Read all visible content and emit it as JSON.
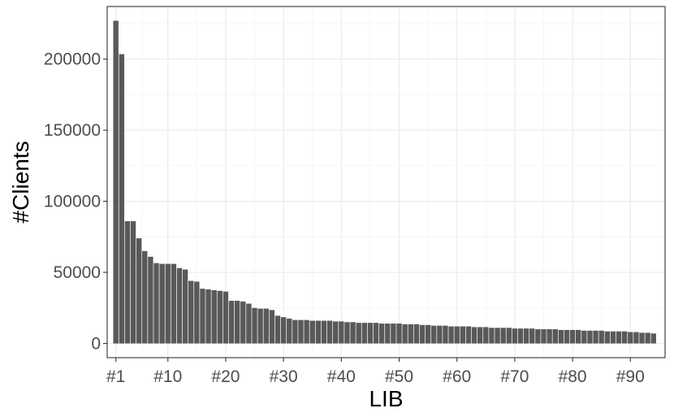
{
  "chart_data": {
    "type": "bar",
    "title": "",
    "xlabel": "LIB",
    "ylabel": "#Clients",
    "ylim": [
      -10000,
      237000
    ],
    "xlim": [
      -0.5,
      96.0
    ],
    "yticks": [
      0,
      50000,
      100000,
      150000,
      200000
    ],
    "ytick_labels": [
      "0",
      "50000",
      "100000",
      "150000",
      "200000"
    ],
    "xticks": [
      1,
      10,
      20,
      30,
      40,
      50,
      60,
      70,
      80,
      90
    ],
    "xtick_labels": [
      "#1",
      "#10",
      "#20",
      "#30",
      "#40",
      "#50",
      "#60",
      "#70",
      "#80",
      "#90"
    ],
    "grid": true,
    "legend": "none",
    "bar_color": "#595959",
    "panel_border_color": "#333333",
    "grid_major_color": "#ebebeb",
    "grid_minor_color": "#f4f4f4",
    "categories": [
      1,
      2,
      3,
      4,
      5,
      6,
      7,
      8,
      9,
      10,
      11,
      12,
      13,
      14,
      15,
      16,
      17,
      18,
      19,
      20,
      21,
      22,
      23,
      24,
      25,
      26,
      27,
      28,
      29,
      30,
      31,
      32,
      33,
      34,
      35,
      36,
      37,
      38,
      39,
      40,
      41,
      42,
      43,
      44,
      45,
      46,
      47,
      48,
      49,
      50,
      51,
      52,
      53,
      54,
      55,
      56,
      57,
      58,
      59,
      60,
      61,
      62,
      63,
      64,
      65,
      66,
      67,
      68,
      69,
      70,
      71,
      72,
      73,
      74,
      75,
      76,
      77,
      78,
      79,
      80,
      81,
      82,
      83,
      84,
      85,
      86,
      87,
      88,
      89,
      90,
      91,
      92,
      93,
      94
    ],
    "values": [
      227000,
      203500,
      86000,
      86000,
      74000,
      65000,
      61000,
      56500,
      56000,
      56000,
      56000,
      53000,
      52000,
      44000,
      43500,
      38500,
      38000,
      37500,
      37000,
      36500,
      30000,
      30000,
      29500,
      28000,
      25000,
      24500,
      24500,
      23500,
      19500,
      18500,
      17500,
      16500,
      16500,
      16500,
      16000,
      16000,
      16000,
      16000,
      15500,
      15500,
      15000,
      15000,
      14500,
      14500,
      14500,
      14500,
      14000,
      14000,
      14000,
      14000,
      13500,
      13500,
      13500,
      13000,
      13000,
      12500,
      12500,
      12500,
      12000,
      12000,
      12000,
      12000,
      11500,
      11500,
      11500,
      11000,
      11000,
      11000,
      11000,
      10500,
      10500,
      10500,
      10500,
      10000,
      10000,
      10000,
      10000,
      9500,
      9500,
      9500,
      9500,
      9000,
      9000,
      9000,
      9000,
      8500,
      8500,
      8500,
      8500,
      8000,
      8000,
      7500,
      7500,
      7000
    ]
  }
}
